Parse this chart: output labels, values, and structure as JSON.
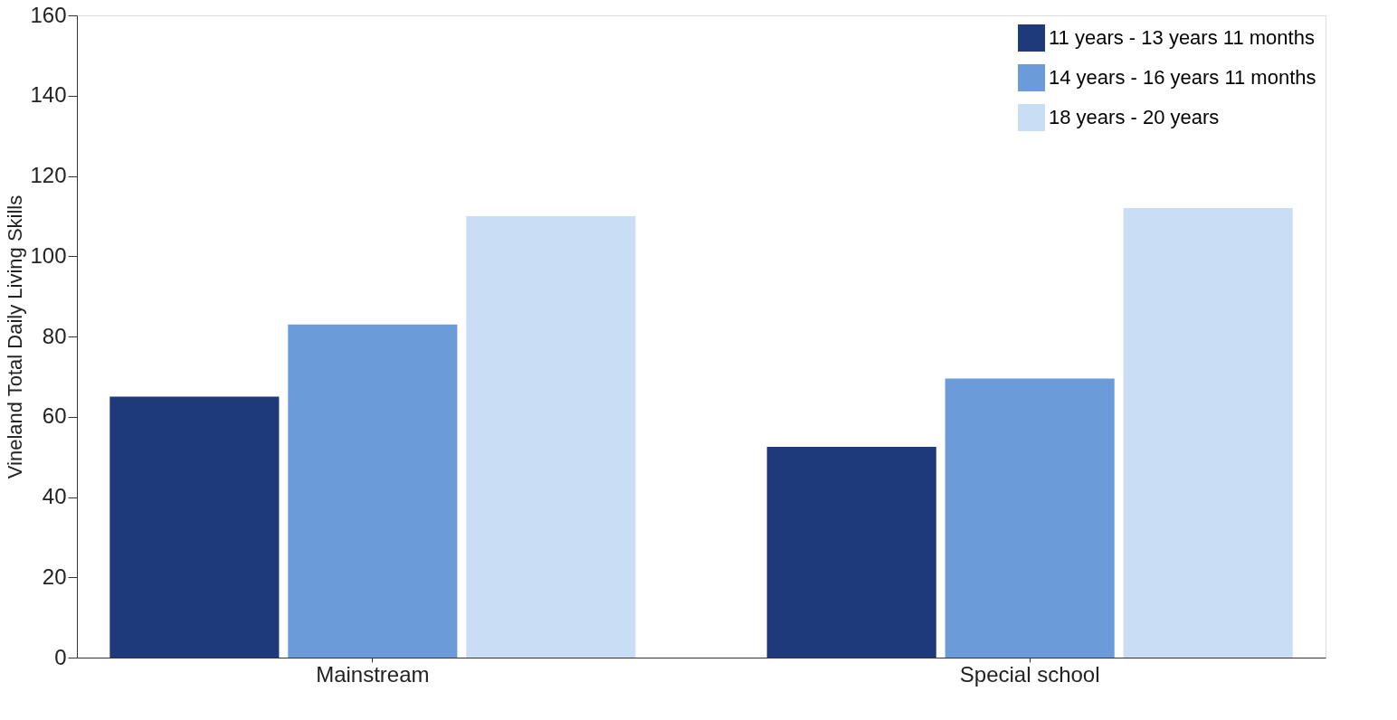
{
  "chart_data": {
    "type": "bar",
    "ylabel": "Vineland Total Daily Living Skills",
    "categories": [
      "Mainstream",
      "Special school"
    ],
    "series": [
      {
        "name": "11 years - 13 years 11 months",
        "color": "#1f3a7a",
        "values": [
          65,
          52.5
        ]
      },
      {
        "name": "14 years - 16 years 11 months",
        "color": "#6b9bd8",
        "values": [
          83,
          69.5
        ]
      },
      {
        "name": "18 years - 20 years",
        "color": "#c9def5",
        "values": [
          110,
          112
        ]
      }
    ],
    "ylim": [
      0,
      160
    ],
    "yticks": [
      0,
      20,
      40,
      60,
      80,
      100,
      120,
      140,
      160
    ],
    "grid": false,
    "legend": "top right"
  }
}
